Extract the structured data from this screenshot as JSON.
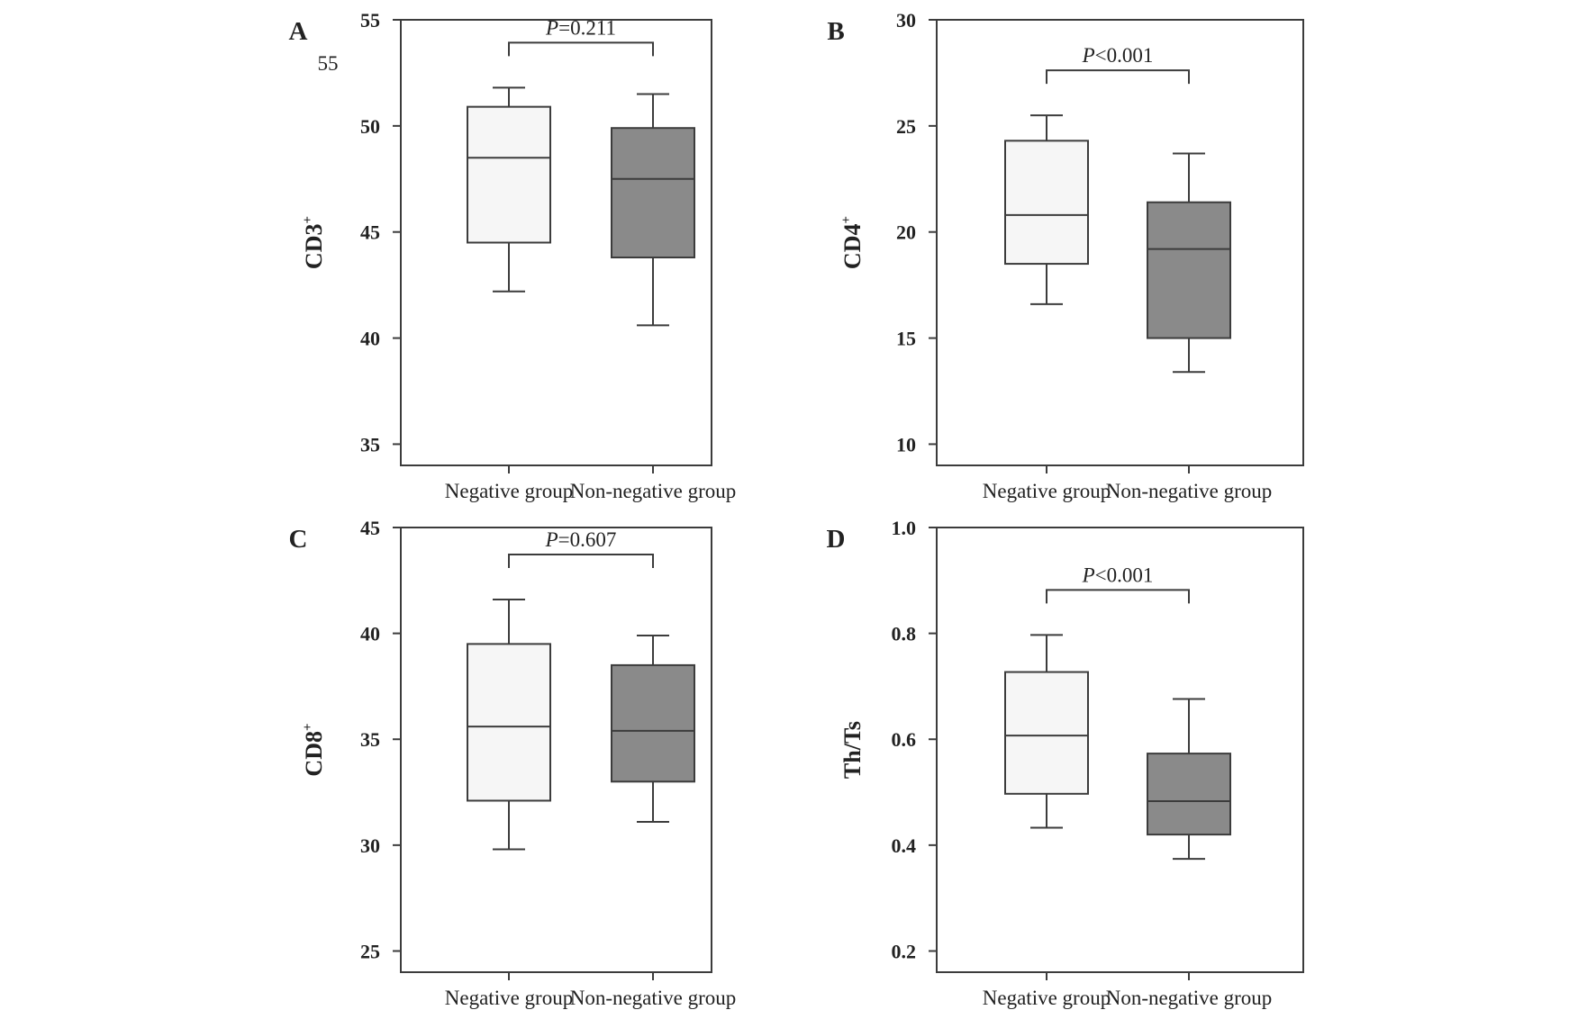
{
  "colors": {
    "negative_box": "#f6f6f6",
    "nonnegative_box": "#8a8a8a",
    "stroke": "#3c3c3c",
    "text": "#222222"
  },
  "stray_label": "55",
  "chart_data": [
    {
      "type": "box",
      "panel_label": "A",
      "ylabel": "CD3",
      "ylabel_superscript": "+",
      "categories": [
        "Negative group",
        "Non-negative group"
      ],
      "ylim": [
        34,
        55
      ],
      "yticks": [
        35,
        40,
        45,
        50,
        55
      ],
      "tick_labels": [
        "35",
        "40",
        "45",
        "50",
        "55"
      ],
      "series": [
        {
          "category": "Negative group",
          "min": 42.2,
          "q1": 44.5,
          "median": 48.5,
          "q3": 50.9,
          "max": 51.8
        },
        {
          "category": "Non-negative group",
          "min": 40.6,
          "q1": 43.8,
          "median": 47.5,
          "q3": 49.9,
          "max": 51.5
        }
      ],
      "annotation": {
        "italic": "P",
        "text": "=0.211"
      },
      "grid": false
    },
    {
      "type": "box",
      "panel_label": "B",
      "ylabel": "CD4",
      "ylabel_superscript": "+",
      "categories": [
        "Negative group",
        "Non-negative group"
      ],
      "ylim": [
        9,
        30
      ],
      "yticks": [
        10,
        15,
        20,
        25,
        30
      ],
      "tick_labels": [
        "10",
        "15",
        "20",
        "25",
        "30"
      ],
      "series": [
        {
          "category": "Negative group",
          "min": 16.6,
          "q1": 18.5,
          "median": 20.8,
          "q3": 24.3,
          "max": 25.5
        },
        {
          "category": "Non-negative group",
          "min": 13.4,
          "q1": 15.0,
          "median": 19.2,
          "q3": 21.4,
          "max": 23.7
        }
      ],
      "annotation": {
        "italic": "P",
        "text": "<0.001"
      },
      "grid": false
    },
    {
      "type": "box",
      "panel_label": "C",
      "ylabel": "CD8",
      "ylabel_superscript": "+",
      "categories": [
        "Negative group",
        "Non-negative group"
      ],
      "ylim": [
        24,
        45
      ],
      "yticks": [
        25,
        30,
        35,
        40,
        45
      ],
      "tick_labels": [
        "25",
        "30",
        "35",
        "40",
        "45"
      ],
      "series": [
        {
          "category": "Negative group",
          "min": 29.8,
          "q1": 32.1,
          "median": 35.6,
          "q3": 39.5,
          "max": 41.6
        },
        {
          "category": "Non-negative group",
          "min": 31.1,
          "q1": 33.0,
          "median": 35.4,
          "q3": 38.5,
          "max": 39.9
        }
      ],
      "annotation": {
        "italic": "P",
        "text": "=0.607"
      },
      "grid": false
    },
    {
      "type": "box",
      "panel_label": "D",
      "ylabel": "Th/Ts",
      "ylabel_superscript": "",
      "categories": [
        "Negative group",
        "Non-negative group"
      ],
      "ylim": [
        0.16,
        1.0
      ],
      "yticks": [
        0.2,
        0.4,
        0.6,
        0.8,
        1.0
      ],
      "tick_labels": [
        "0.2",
        "0.4",
        "0.6",
        "0.8",
        "1.0"
      ],
      "series": [
        {
          "category": "Negative group",
          "min": 0.433,
          "q1": 0.497,
          "median": 0.607,
          "q3": 0.727,
          "max": 0.797
        },
        {
          "category": "Non-negative group",
          "min": 0.374,
          "q1": 0.42,
          "median": 0.483,
          "q3": 0.573,
          "max": 0.676
        }
      ],
      "annotation": {
        "italic": "P",
        "text": "<0.001"
      },
      "grid": false
    }
  ]
}
